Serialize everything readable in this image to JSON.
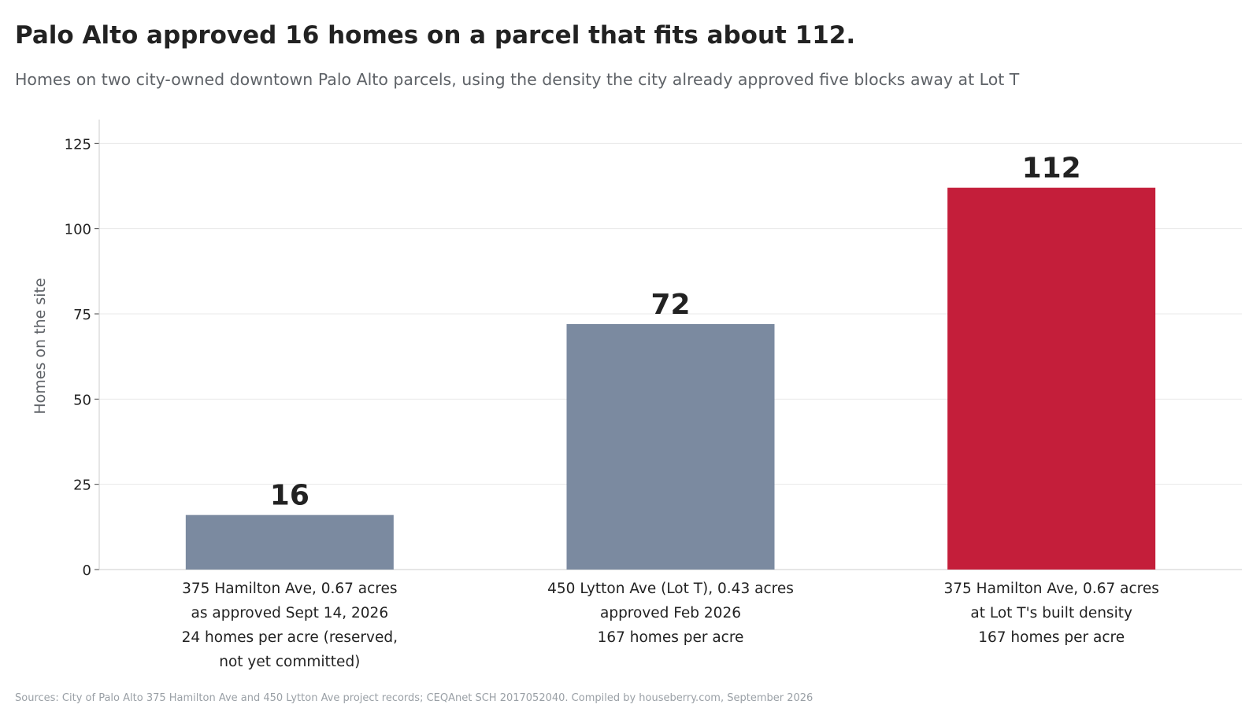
{
  "title": "Palo Alto approved 16 homes on a parcel that fits about 112.",
  "subtitle": "Homes on two city-owned downtown Palo Alto parcels, using the density the city already approved five blocks away at Lot T",
  "source": "Sources: City of Palo Alto 375 Hamilton Ave and 450 Lytton Ave project records; CEQAnet SCH 2017052040. Compiled by houseberry.com, September 2026",
  "colors": {
    "bar_default": "#7b8aa0",
    "bar_highlight": "#c41e3a",
    "grid": "#e8e8e8",
    "axis": "#cccccc",
    "text": "#222222",
    "muted": "#5f6368"
  },
  "chart_data": {
    "type": "bar",
    "ylabel": "Homes on the site",
    "xlabel": "",
    "ylim": [
      0,
      132
    ],
    "yticks": [
      0,
      25,
      50,
      75,
      100,
      125
    ],
    "grid": true,
    "categories": [
      [
        "375 Hamilton Ave, 0.67 acres",
        "as approved Sept 14, 2026",
        "24 homes per acre (reserved,",
        "not yet committed)"
      ],
      [
        "450 Lytton Ave (Lot T), 0.43 acres",
        "approved Feb 2026",
        "167 homes per acre"
      ],
      [
        "375 Hamilton Ave, 0.67 acres",
        "at Lot T's built density",
        "167 homes per acre"
      ]
    ],
    "values": [
      16,
      72,
      112
    ],
    "data_labels": [
      "16",
      "72",
      "112"
    ],
    "highlight_index": 2
  }
}
